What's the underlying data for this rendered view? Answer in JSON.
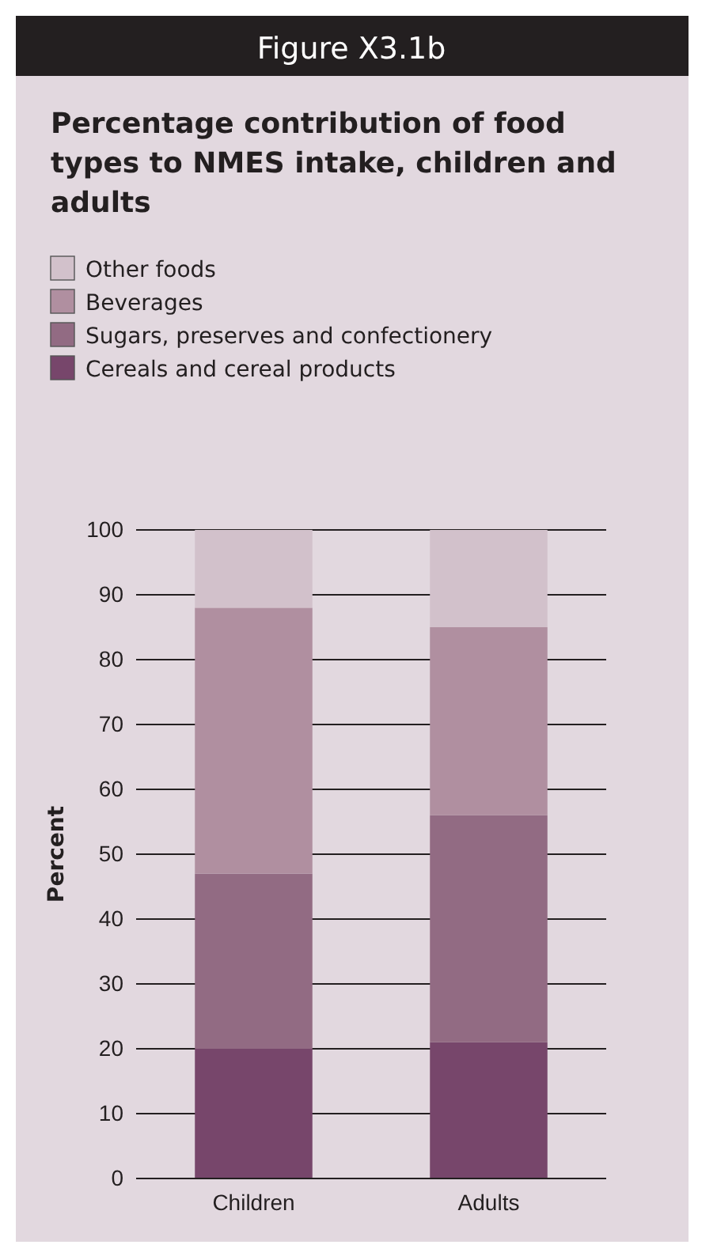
{
  "chart_data": {
    "type": "bar",
    "title": "Figure X3.1b",
    "subtitle": "Percentage contribution of food types to NMES intake, children and adults",
    "ylabel": "Percent",
    "categories": [
      "Children",
      "Adults"
    ],
    "stacked": true,
    "series": [
      {
        "name": "Cereals and cereal products",
        "color": "#77466b",
        "values": [
          20,
          21
        ]
      },
      {
        "name": "Sugars, preserves and confectionery",
        "color": "#926b83",
        "values": [
          27,
          35
        ]
      },
      {
        "name": "Beverages",
        "color": "#b08fa0",
        "values": [
          41,
          29
        ]
      },
      {
        "name": "Other foods",
        "color": "#d2c1cb",
        "values": [
          12,
          15
        ]
      }
    ],
    "ylim": [
      0,
      100
    ],
    "yticks": [
      0,
      10,
      20,
      30,
      40,
      50,
      60,
      70,
      80,
      90,
      100
    ],
    "grid": "y",
    "legend": "top left"
  }
}
